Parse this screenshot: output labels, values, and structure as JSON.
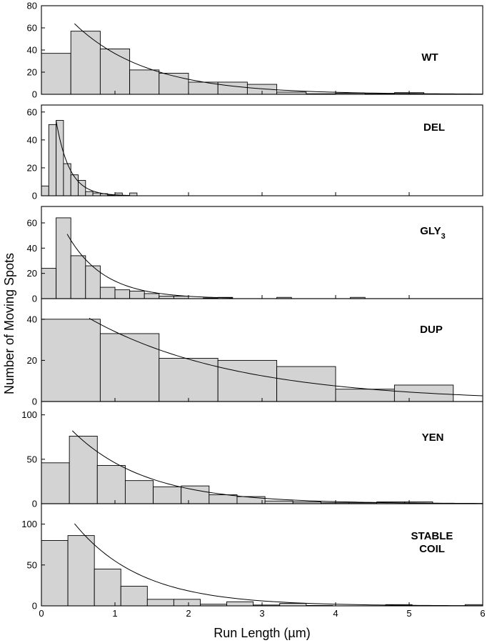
{
  "figure": {
    "xlabel": "Run Length (µm)",
    "ylabel": "Number of Moving Spots",
    "bar_color": "#d3d3d3"
  },
  "chart_data": [
    {
      "type": "bar",
      "label": "WT",
      "xlim": [
        0,
        6
      ],
      "ylim": [
        0,
        80
      ],
      "xticks": [
        0,
        1,
        2,
        3,
        4,
        5,
        6
      ],
      "yticks": [
        0,
        20,
        40,
        60,
        80
      ],
      "bins": [
        {
          "x0": 0.0,
          "x1": 0.4,
          "value": 37
        },
        {
          "x0": 0.4,
          "x1": 0.8,
          "value": 57
        },
        {
          "x0": 0.8,
          "x1": 1.2,
          "value": 41
        },
        {
          "x0": 1.2,
          "x1": 1.6,
          "value": 22
        },
        {
          "x0": 1.6,
          "x1": 2.0,
          "value": 19
        },
        {
          "x0": 2.0,
          "x1": 2.4,
          "value": 11
        },
        {
          "x0": 2.4,
          "x1": 2.8,
          "value": 11
        },
        {
          "x0": 2.8,
          "x1": 3.2,
          "value": 9
        },
        {
          "x0": 3.2,
          "x1": 3.6,
          "value": 2
        },
        {
          "x0": 3.6,
          "x1": 4.0,
          "value": 0.5
        },
        {
          "x0": 4.0,
          "x1": 4.4,
          "value": 1
        },
        {
          "x0": 4.4,
          "x1": 4.8,
          "value": 0.5
        },
        {
          "x0": 4.8,
          "x1": 5.2,
          "value": 1.5
        }
      ],
      "fit": {
        "x_start": 0.45,
        "x_end": 6.0,
        "a": 100,
        "k": 1.0
      }
    },
    {
      "type": "bar",
      "label": "DEL",
      "xlim": [
        0,
        6
      ],
      "ylim": [
        0,
        65
      ],
      "xticks": [
        0,
        1,
        2,
        3,
        4,
        5,
        6
      ],
      "yticks": [
        0,
        20,
        40,
        60
      ],
      "bins": [
        {
          "x0": 0.0,
          "x1": 0.1,
          "value": 7
        },
        {
          "x0": 0.1,
          "x1": 0.2,
          "value": 51
        },
        {
          "x0": 0.2,
          "x1": 0.3,
          "value": 54
        },
        {
          "x0": 0.3,
          "x1": 0.4,
          "value": 23
        },
        {
          "x0": 0.4,
          "x1": 0.5,
          "value": 15
        },
        {
          "x0": 0.5,
          "x1": 0.6,
          "value": 11
        },
        {
          "x0": 0.6,
          "x1": 0.7,
          "value": 3
        },
        {
          "x0": 0.7,
          "x1": 0.8,
          "value": 2
        },
        {
          "x0": 0.8,
          "x1": 0.9,
          "value": 1.5
        },
        {
          "x0": 0.9,
          "x1": 1.0,
          "value": 0.5
        },
        {
          "x0": 1.0,
          "x1": 1.1,
          "value": 2
        },
        {
          "x0": 1.1,
          "x1": 1.2,
          "value": 0.3
        },
        {
          "x0": 1.2,
          "x1": 1.3,
          "value": 2
        }
      ],
      "fit": {
        "x_start": 0.2,
        "x_end": 1.15,
        "a": 161,
        "k": 5.5
      }
    },
    {
      "type": "bar",
      "label": "GLY",
      "label_sub": "3",
      "xlim": [
        0,
        6
      ],
      "ylim": [
        0,
        73
      ],
      "xticks": [
        0,
        1,
        2,
        3,
        4,
        5,
        6
      ],
      "yticks": [
        0,
        20,
        40,
        60
      ],
      "bins": [
        {
          "x0": 0.0,
          "x1": 0.2,
          "value": 24
        },
        {
          "x0": 0.2,
          "x1": 0.4,
          "value": 64
        },
        {
          "x0": 0.4,
          "x1": 0.6,
          "value": 34
        },
        {
          "x0": 0.6,
          "x1": 0.8,
          "value": 26
        },
        {
          "x0": 0.8,
          "x1": 1.0,
          "value": 9
        },
        {
          "x0": 1.0,
          "x1": 1.2,
          "value": 7
        },
        {
          "x0": 1.2,
          "x1": 1.4,
          "value": 6
        },
        {
          "x0": 1.4,
          "x1": 1.6,
          "value": 4
        },
        {
          "x0": 1.6,
          "x1": 1.8,
          "value": 2
        },
        {
          "x0": 1.8,
          "x1": 2.0,
          "value": 2
        },
        {
          "x0": 2.2,
          "x1": 2.4,
          "value": 0.5
        },
        {
          "x0": 2.4,
          "x1": 2.6,
          "value": 1
        },
        {
          "x0": 3.2,
          "x1": 3.4,
          "value": 1
        },
        {
          "x0": 4.2,
          "x1": 4.4,
          "value": 1
        }
      ],
      "fit": {
        "x_start": 0.35,
        "x_end": 2.6,
        "a": 103,
        "k": 2.0
      }
    },
    {
      "type": "bar",
      "label": "DUP",
      "xlim": [
        0,
        6
      ],
      "ylim": [
        0,
        50
      ],
      "xticks": [
        0,
        1,
        2,
        3,
        4,
        5,
        6
      ],
      "yticks": [
        0,
        20,
        40
      ],
      "bins": [
        {
          "x0": 0.0,
          "x1": 0.8,
          "value": 40
        },
        {
          "x0": 0.8,
          "x1": 1.6,
          "value": 33
        },
        {
          "x0": 1.6,
          "x1": 2.4,
          "value": 21
        },
        {
          "x0": 2.4,
          "x1": 3.2,
          "value": 20
        },
        {
          "x0": 3.2,
          "x1": 4.0,
          "value": 17
        },
        {
          "x0": 4.0,
          "x1": 4.8,
          "value": 6
        },
        {
          "x0": 4.8,
          "x1": 5.6,
          "value": 8
        }
      ],
      "fit": {
        "x_start": 0.65,
        "x_end": 6.0,
        "a": 56,
        "k": 0.5
      }
    },
    {
      "type": "bar",
      "label": "YEN",
      "xlim": [
        0,
        6
      ],
      "ylim": [
        0,
        115
      ],
      "xticks": [
        0,
        1,
        2,
        3,
        4,
        5,
        6
      ],
      "yticks": [
        0,
        50,
        100
      ],
      "bins": [
        {
          "x0": 0.0,
          "x1": 0.38,
          "value": 46
        },
        {
          "x0": 0.38,
          "x1": 0.76,
          "value": 76
        },
        {
          "x0": 0.76,
          "x1": 1.14,
          "value": 43
        },
        {
          "x0": 1.14,
          "x1": 1.52,
          "value": 26
        },
        {
          "x0": 1.52,
          "x1": 1.9,
          "value": 19
        },
        {
          "x0": 1.9,
          "x1": 2.28,
          "value": 20
        },
        {
          "x0": 2.28,
          "x1": 2.66,
          "value": 10
        },
        {
          "x0": 2.66,
          "x1": 3.04,
          "value": 8
        },
        {
          "x0": 3.04,
          "x1": 3.42,
          "value": 3
        },
        {
          "x0": 3.42,
          "x1": 3.8,
          "value": 2
        },
        {
          "x0": 3.8,
          "x1": 4.18,
          "value": 1
        },
        {
          "x0": 4.18,
          "x1": 4.56,
          "value": 1
        },
        {
          "x0": 4.56,
          "x1": 4.94,
          "value": 2
        },
        {
          "x0": 4.94,
          "x1": 5.32,
          "value": 2
        }
      ],
      "fit": {
        "x_start": 0.42,
        "x_end": 6.0,
        "a": 125,
        "k": 1.0
      }
    },
    {
      "type": "bar",
      "label": "STABLE",
      "label_line2": "COIL",
      "xlim": [
        0,
        6
      ],
      "ylim": [
        0,
        125
      ],
      "xticks": [
        0,
        1,
        2,
        3,
        4,
        5,
        6
      ],
      "yticks": [
        0,
        50,
        100
      ],
      "bins": [
        {
          "x0": 0.0,
          "x1": 0.36,
          "value": 80
        },
        {
          "x0": 0.36,
          "x1": 0.72,
          "value": 86
        },
        {
          "x0": 0.72,
          "x1": 1.08,
          "value": 45
        },
        {
          "x0": 1.08,
          "x1": 1.44,
          "value": 24
        },
        {
          "x0": 1.44,
          "x1": 1.8,
          "value": 8
        },
        {
          "x0": 1.8,
          "x1": 2.16,
          "value": 8
        },
        {
          "x0": 2.16,
          "x1": 2.52,
          "value": 2
        },
        {
          "x0": 2.52,
          "x1": 2.88,
          "value": 5
        },
        {
          "x0": 2.88,
          "x1": 3.24,
          "value": 1
        },
        {
          "x0": 3.24,
          "x1": 3.6,
          "value": 3
        },
        {
          "x0": 3.6,
          "x1": 3.96,
          "value": 0.5
        },
        {
          "x0": 4.68,
          "x1": 5.04,
          "value": 1.5
        },
        {
          "x0": 5.76,
          "x1": 6.0,
          "value": 1.5
        }
      ],
      "fit": {
        "x_start": 0.45,
        "x_end": 6.0,
        "a": 165,
        "k": 1.1
      }
    }
  ]
}
